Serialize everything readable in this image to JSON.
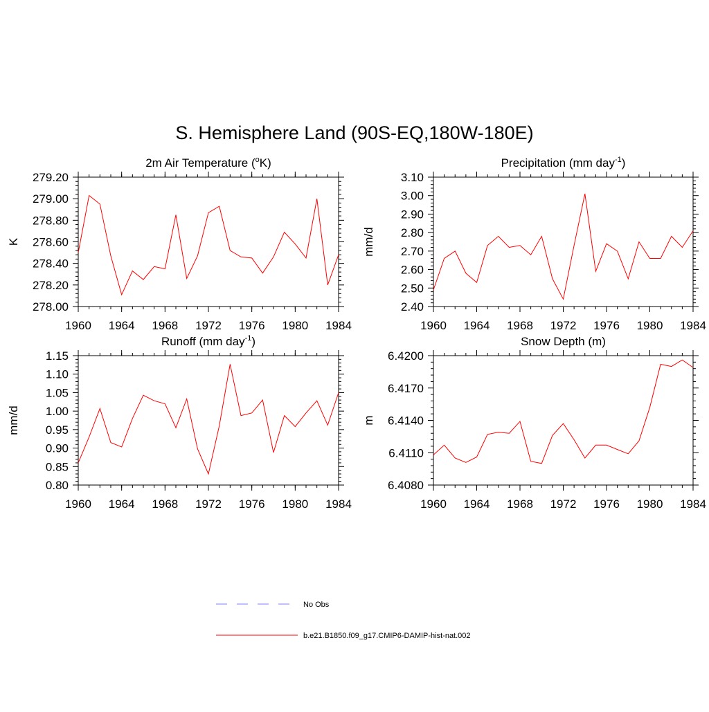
{
  "main_title": "S. Hemisphere Land (90S-EQ,180W-180E)",
  "legend": {
    "entries": [
      {
        "label": "No Obs",
        "color": "#9999ff",
        "style": "dashed"
      },
      {
        "label": "b.e21.B1850.f09_g17.CMIP6-DAMIP-hist-nat.002",
        "color": "#ff0000",
        "style": "solid"
      }
    ]
  },
  "chart_data": [
    {
      "type": "line",
      "title": "2m Air Temperature (°K)",
      "title_parts": [
        "2m Air Temperature (",
        "o",
        "K)"
      ],
      "ylabel": "K",
      "xlim": [
        1960,
        1984
      ],
      "ylim": [
        278.0,
        279.2
      ],
      "x_ticks": [
        1960,
        1964,
        1968,
        1972,
        1976,
        1980,
        1984
      ],
      "y_ticks": [
        "278.00",
        "278.20",
        "278.40",
        "278.60",
        "278.80",
        "279.00",
        "279.20"
      ],
      "x": [
        1960,
        1961,
        1962,
        1963,
        1964,
        1965,
        1966,
        1967,
        1968,
        1969,
        1970,
        1971,
        1972,
        1973,
        1974,
        1975,
        1976,
        1977,
        1978,
        1979,
        1980,
        1981,
        1982,
        1983,
        1984
      ],
      "series": [
        {
          "color": "#ff0000",
          "values": [
            278.5,
            279.03,
            278.95,
            278.47,
            278.11,
            278.33,
            278.25,
            278.37,
            278.35,
            278.85,
            278.26,
            278.47,
            278.87,
            278.93,
            278.52,
            278.46,
            278.45,
            278.31,
            278.46,
            278.69,
            278.58,
            278.45,
            279.0,
            278.2,
            278.48
          ]
        }
      ]
    },
    {
      "type": "line",
      "title": "Precipitation (mm day-1)",
      "title_parts": [
        "Precipitation (mm day",
        "-1",
        ")"
      ],
      "ylabel": "mm/d",
      "xlim": [
        1960,
        1984
      ],
      "ylim": [
        2.4,
        3.1
      ],
      "x_ticks": [
        1960,
        1964,
        1968,
        1972,
        1976,
        1980,
        1984
      ],
      "y_ticks": [
        "2.40",
        "2.50",
        "2.60",
        "2.70",
        "2.80",
        "2.90",
        "3.00",
        "3.10"
      ],
      "x": [
        1960,
        1961,
        1962,
        1963,
        1964,
        1965,
        1966,
        1967,
        1968,
        1969,
        1970,
        1971,
        1972,
        1973,
        1974,
        1975,
        1976,
        1977,
        1978,
        1979,
        1980,
        1981,
        1982,
        1983,
        1984
      ],
      "series": [
        {
          "color": "#ff0000",
          "values": [
            2.49,
            2.66,
            2.7,
            2.58,
            2.53,
            2.73,
            2.78,
            2.72,
            2.73,
            2.68,
            2.78,
            2.55,
            2.44,
            2.73,
            3.01,
            2.59,
            2.74,
            2.7,
            2.55,
            2.75,
            2.66,
            2.66,
            2.78,
            2.72,
            2.81
          ]
        }
      ]
    },
    {
      "type": "line",
      "title": "Runoff (mm day-1)",
      "title_parts": [
        "Runoff (mm day",
        "-1",
        ")"
      ],
      "ylabel": "mm/d",
      "xlim": [
        1960,
        1984
      ],
      "ylim": [
        0.8,
        1.15
      ],
      "x_ticks": [
        1960,
        1964,
        1968,
        1972,
        1976,
        1980,
        1984
      ],
      "y_ticks": [
        "0.80",
        "0.85",
        "0.90",
        "0.95",
        "1.00",
        "1.05",
        "1.10",
        "1.15"
      ],
      "x": [
        1960,
        1961,
        1962,
        1963,
        1964,
        1965,
        1966,
        1967,
        1968,
        1969,
        1970,
        1971,
        1972,
        1973,
        1974,
        1975,
        1976,
        1977,
        1978,
        1979,
        1980,
        1981,
        1982,
        1983,
        1984
      ],
      "series": [
        {
          "color": "#ff0000",
          "values": [
            0.86,
            0.93,
            1.007,
            0.915,
            0.903,
            0.98,
            1.043,
            1.028,
            1.02,
            0.955,
            1.033,
            0.898,
            0.83,
            0.96,
            1.127,
            0.988,
            0.995,
            1.03,
            0.888,
            0.988,
            0.958,
            0.995,
            1.028,
            0.962,
            1.05
          ]
        }
      ]
    },
    {
      "type": "line",
      "title": "Snow Depth (m)",
      "title_parts": [
        "Snow Depth (m)",
        "",
        ""
      ],
      "ylabel": "m",
      "xlim": [
        1960,
        1984
      ],
      "ylim": [
        6.408,
        6.42
      ],
      "x_ticks": [
        1960,
        1964,
        1968,
        1972,
        1976,
        1980,
        1984
      ],
      "y_ticks": [
        "6.4080",
        "6.4110",
        "6.4140",
        "6.4170",
        "6.4200"
      ],
      "x": [
        1960,
        1961,
        1962,
        1963,
        1964,
        1965,
        1966,
        1967,
        1968,
        1969,
        1970,
        1971,
        1972,
        1973,
        1974,
        1975,
        1976,
        1977,
        1978,
        1979,
        1980,
        1981,
        1982,
        1983,
        1984
      ],
      "series": [
        {
          "color": "#ff0000",
          "values": [
            6.4108,
            6.4117,
            6.4105,
            6.4101,
            6.4106,
            6.4127,
            6.4129,
            6.4128,
            6.4139,
            6.4102,
            6.41,
            6.4126,
            6.4137,
            6.4122,
            6.4105,
            6.4117,
            6.4117,
            6.4113,
            6.4109,
            6.4121,
            6.4152,
            6.4192,
            6.419,
            6.4196,
            6.4189
          ]
        }
      ]
    }
  ]
}
